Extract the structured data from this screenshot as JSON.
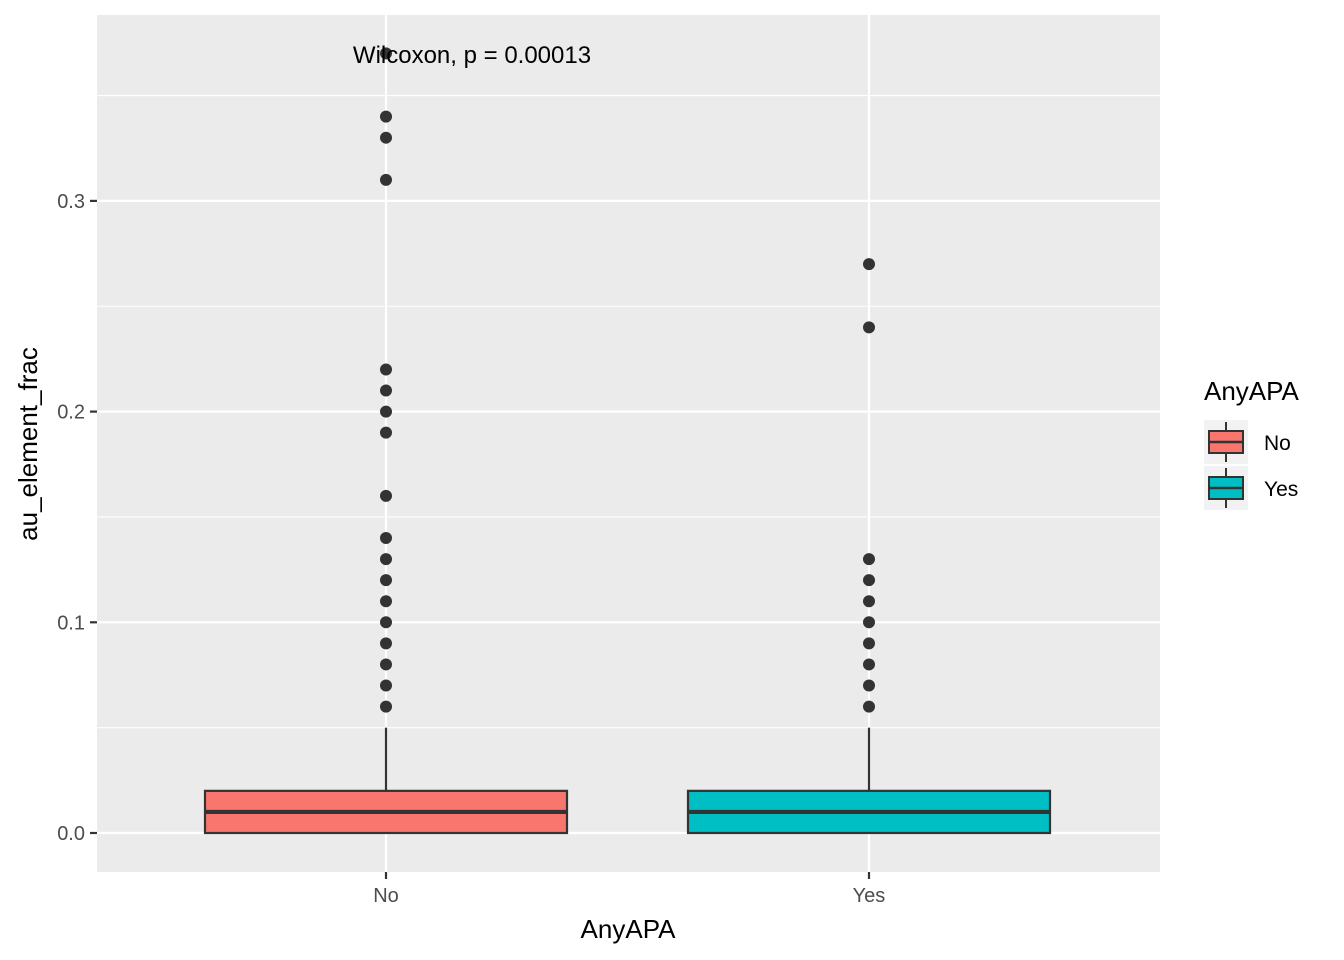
{
  "chart_data": {
    "type": "box",
    "title": "",
    "xlabel": "AnyAPA",
    "ylabel": "au_element_frac",
    "ylim": [
      -0.018,
      0.388
    ],
    "y_ticks": [
      0.0,
      0.1,
      0.2,
      0.3
    ],
    "y_tick_labels": [
      "0.0",
      "0.1",
      "0.2",
      "0.3"
    ],
    "y_minor_ticks": [
      0.05,
      0.15,
      0.25,
      0.35
    ],
    "grid": true,
    "background": "#ebebeb",
    "categories": [
      "No",
      "Yes"
    ],
    "annotation": "Wilcoxon, p = 0.00013",
    "legend": {
      "title": "AnyAPA",
      "position": "right",
      "entries": [
        {
          "label": "No",
          "color": "#f8766d"
        },
        {
          "label": "Yes",
          "color": "#00bfc4"
        }
      ]
    },
    "boxes": [
      {
        "category": "No",
        "color": "#f8766d",
        "min": 0.0,
        "q1": 0.0,
        "median": 0.01,
        "q3": 0.02,
        "whisker_high": 0.05,
        "outliers": [
          0.06,
          0.07,
          0.08,
          0.09,
          0.1,
          0.11,
          0.12,
          0.13,
          0.14,
          0.16,
          0.19,
          0.2,
          0.21,
          0.22,
          0.31,
          0.33,
          0.34,
          0.37
        ]
      },
      {
        "category": "Yes",
        "color": "#00bfc4",
        "min": 0.0,
        "q1": 0.0,
        "median": 0.01,
        "q3": 0.02,
        "whisker_high": 0.05,
        "outliers": [
          0.06,
          0.07,
          0.08,
          0.09,
          0.1,
          0.11,
          0.12,
          0.13,
          0.24,
          0.27
        ]
      }
    ]
  }
}
